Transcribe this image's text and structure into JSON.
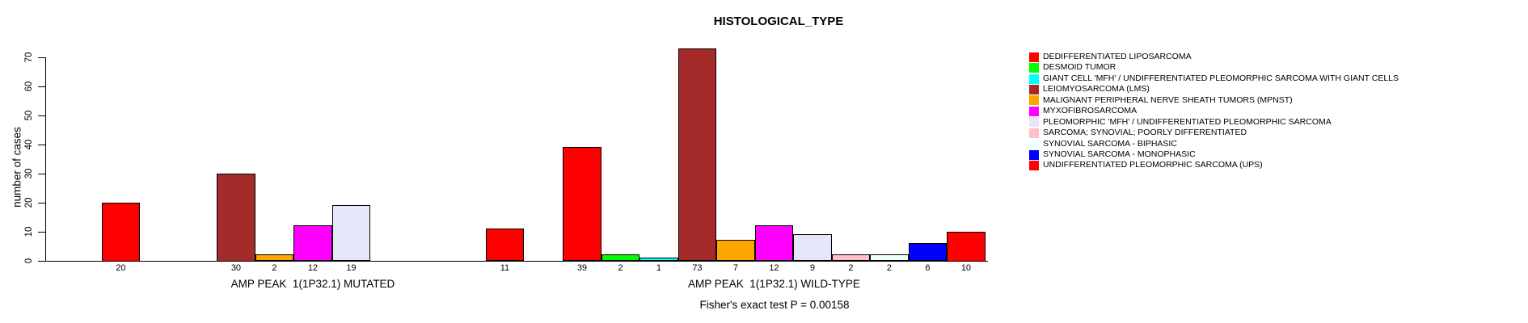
{
  "chart_data": {
    "type": "bar",
    "title": "HISTOLOGICAL_TYPE",
    "ylabel": "number of cases",
    "xlabel": "",
    "ylim": [
      0,
      70
    ],
    "yticks": [
      0,
      10,
      20,
      30,
      40,
      50,
      60,
      70
    ],
    "grid": false,
    "legend_position": "right",
    "footer": "Fisher's exact test P = 0.00158",
    "categories": [
      "DEDIFFERENTIATED LIPOSARCOMA",
      "DESMOID TUMOR",
      "GIANT CELL 'MFH' / UNDIFFERENTIATED PLEOMORPHIC SARCOMA WITH GIANT CELLS",
      "LEIOMYOSARCOMA (LMS)",
      "MALIGNANT PERIPHERAL NERVE SHEATH TUMORS (MPNST)",
      "MYXOFIBROSARCOMA",
      "PLEOMORPHIC 'MFH' / UNDIFFERENTIATED PLEOMORPHIC SARCOMA",
      "SARCOMA; SYNOVIAL; POORLY DIFFERENTIATED",
      "SYNOVIAL SARCOMA - BIPHASIC",
      "SYNOVIAL SARCOMA - MONOPHASIC",
      "UNDIFFERENTIATED PLEOMORPHIC SARCOMA (UPS)"
    ],
    "colors": [
      "#FF0000",
      "#00FF00",
      "#00FFFF",
      "#A52A2A",
      "#FFA500",
      "#FF00FF",
      "#E6E6FA",
      "#FFC0CB",
      "#F0FFFF",
      "#0000FF",
      "#FF0000"
    ],
    "series": [
      {
        "name": "AMP PEAK  1(1P32.1) MUTATED",
        "values": [
          20,
          0,
          0,
          30,
          2,
          12,
          19,
          0,
          0,
          0,
          11
        ]
      },
      {
        "name": "AMP PEAK  1(1P32.1) WILD-TYPE",
        "values": [
          39,
          2,
          1,
          73,
          7,
          12,
          9,
          2,
          2,
          6,
          10
        ]
      }
    ]
  }
}
